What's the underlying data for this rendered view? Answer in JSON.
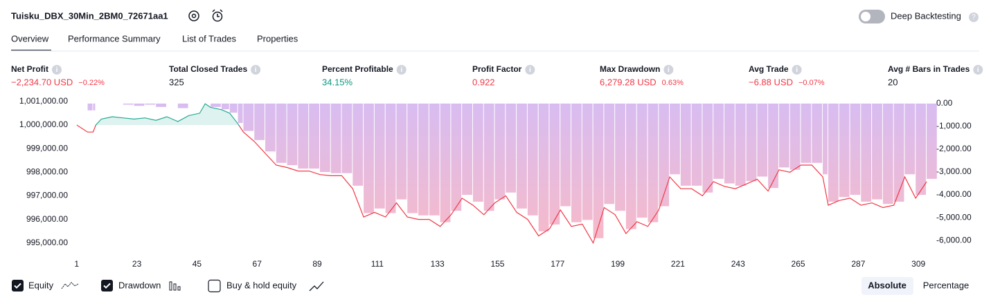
{
  "header": {
    "title": "Tuisku_DBX_30Min_2BM0_72671aa1",
    "deep_backtesting": "Deep Backtesting"
  },
  "tabs": [
    "Overview",
    "Performance Summary",
    "List of Trades",
    "Properties"
  ],
  "metrics": [
    {
      "label": "Net Profit",
      "value": "−2,234.70 USD",
      "percent": "−0.22%",
      "tone": "negative"
    },
    {
      "label": "Total Closed Trades",
      "value": "325",
      "tone": "neutral"
    },
    {
      "label": "Percent Profitable",
      "value": "34.15%",
      "tone": "positive"
    },
    {
      "label": "Profit Factor",
      "value": "0.922",
      "tone": "negative"
    },
    {
      "label": "Max Drawdown",
      "value": "6,279.28 USD",
      "percent": "0.63%",
      "tone": "negative"
    },
    {
      "label": "Avg Trade",
      "value": "−6.88 USD",
      "percent": "−0.07%",
      "tone": "negative"
    },
    {
      "label": "Avg # Bars in Trades",
      "value": "20",
      "tone": "neutral"
    }
  ],
  "chart_data": {
    "type": "line",
    "x": [
      1,
      5,
      7,
      8,
      10,
      14,
      18,
      22,
      26,
      30,
      34,
      38,
      42,
      46,
      48,
      50,
      54,
      57,
      60,
      62,
      66,
      70,
      74,
      78,
      82,
      86,
      90,
      94,
      98,
      102,
      106,
      110,
      114,
      118,
      122,
      126,
      130,
      134,
      138,
      142,
      146,
      150,
      154,
      158,
      162,
      166,
      170,
      174,
      178,
      182,
      186,
      190,
      194,
      198,
      202,
      206,
      210,
      214,
      218,
      222,
      226,
      230,
      234,
      238,
      242,
      246,
      250,
      254,
      258,
      262,
      266,
      270,
      274,
      276,
      280,
      284,
      288,
      292,
      296,
      300,
      304,
      308,
      312
    ],
    "series": [
      {
        "name": "Equity",
        "color": "#f23645",
        "color_above": "#22ab94",
        "values": [
          1000000,
          999700,
          999700,
          1000000,
          1000250,
          1000350,
          1000300,
          1000250,
          1000300,
          1000200,
          1000350,
          1000150,
          1000400,
          1000500,
          1000900,
          1000750,
          1000650,
          1000500,
          1000050,
          999700,
          999300,
          998800,
          998300,
          998200,
          998050,
          998050,
          997900,
          997850,
          997850,
          997300,
          996100,
          996300,
          996100,
          996700,
          996100,
          996000,
          996000,
          995700,
          996200,
          996900,
          996600,
          996200,
          996700,
          997000,
          996300,
          996000,
          995300,
          995600,
          996400,
          995700,
          995800,
          995000,
          996500,
          996200,
          995400,
          995900,
          995700,
          996400,
          997800,
          997300,
          997300,
          997000,
          997600,
          997400,
          997300,
          997500,
          997700,
          997200,
          998100,
          998000,
          998300,
          998300,
          997800,
          996600,
          996800,
          996900,
          996600,
          996700,
          996500,
          996600,
          997800,
          996900,
          997600
        ]
      },
      {
        "name": "Drawdown",
        "type": "bar",
        "axis": "y2",
        "color_top": "#c9a6ef",
        "color_bottom": "#f7a3b3",
        "values": [
          0,
          -300,
          -300,
          0,
          0,
          0,
          -50,
          -100,
          -50,
          -150,
          0,
          -200,
          0,
          0,
          0,
          -150,
          -250,
          -400,
          -850,
          -1200,
          -1600,
          -2100,
          -2600,
          -2700,
          -2850,
          -2850,
          -3000,
          -3050,
          -3050,
          -3600,
          -4800,
          -4600,
          -4800,
          -4200,
          -4800,
          -4900,
          -4900,
          -5200,
          -4700,
          -4000,
          -4300,
          -4700,
          -4200,
          -3900,
          -4600,
          -4900,
          -5600,
          -5300,
          -4500,
          -5200,
          -5100,
          -5900,
          -4400,
          -4700,
          -5500,
          -5000,
          -5200,
          -4500,
          -3100,
          -3600,
          -3600,
          -3900,
          -3300,
          -3500,
          -3600,
          -3400,
          -3200,
          -3700,
          -2800,
          -2900,
          -2600,
          -2600,
          -3100,
          -4300,
          -4100,
          -4000,
          -4300,
          -4200,
          -4400,
          -4300,
          -3100,
          -4000,
          -3300
        ]
      }
    ],
    "xlim": [
      0.3,
      312.5
    ],
    "xticks": [
      1,
      23,
      45,
      67,
      89,
      111,
      133,
      155,
      177,
      199,
      221,
      243,
      265,
      287,
      309
    ],
    "ylim": [
      994700,
      1001200
    ],
    "yticks": [
      {
        "value": 1001000,
        "label": "1,001,000.00"
      },
      {
        "value": 1000000,
        "label": "1,000,000.00"
      },
      {
        "value": 999000,
        "label": "999,000.00"
      },
      {
        "value": 998000,
        "label": "998,000.00"
      },
      {
        "value": 997000,
        "label": "997,000.00"
      },
      {
        "value": 996000,
        "label": "996,000.00"
      },
      {
        "value": 995000,
        "label": "995,000.00"
      }
    ],
    "y2lim": [
      -6420,
      300
    ],
    "y2ticks": [
      {
        "value": 0,
        "label": "0.00"
      },
      {
        "value": -1000,
        "label": "-1,000.00"
      },
      {
        "value": -2000,
        "label": "-2,000.00"
      },
      {
        "value": -3000,
        "label": "-3,000.00"
      },
      {
        "value": -4000,
        "label": "-4,000.00"
      },
      {
        "value": -5000,
        "label": "-5,000.00"
      },
      {
        "value": -6000,
        "label": "-6,000.00"
      }
    ],
    "grid": false
  },
  "controls": {
    "buy_hold": "Buy & hold equity",
    "modes": [
      "Absolute",
      "Percentage"
    ]
  }
}
